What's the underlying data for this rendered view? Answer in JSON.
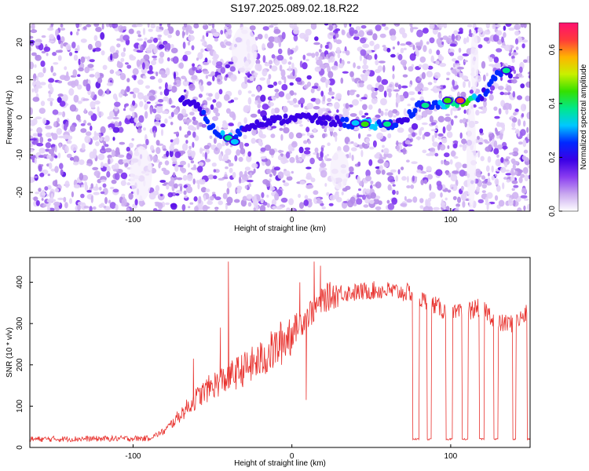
{
  "title": "S197.2025.089.02.18.R22",
  "chart_data": [
    {
      "type": "heatmap",
      "title": "S197.2025.089.02.18.R22",
      "xlabel": "Height of straight line (km)",
      "ylabel": "Frequency (Hz)",
      "xlim": [
        -165,
        150
      ],
      "ylim": [
        -25,
        25
      ],
      "xticks": [
        -100,
        0,
        100
      ],
      "yticks": [
        -20,
        -10,
        0,
        10,
        20
      ],
      "colorbar": {
        "label": "Normalized spectral amplitude",
        "range": [
          0,
          0.7
        ],
        "ticks": [
          0.0,
          0.2,
          0.4,
          0.6
        ],
        "colors": [
          "#ffffff",
          "#c9a8ef",
          "#8a3cf0",
          "#3a00e6",
          "#0028ff",
          "#00c8ff",
          "#00e88c",
          "#34e000",
          "#c8f000",
          "#ffb400",
          "#ff3a3a",
          "#ff1070"
        ]
      },
      "ridge": {
        "x": [
          -70,
          -60,
          -50,
          -40,
          -30,
          -20,
          -10,
          0,
          10,
          20,
          30,
          40,
          50,
          60,
          70,
          80,
          90,
          100,
          110,
          120,
          130,
          140
        ],
        "y": [
          5,
          3,
          -3,
          -6,
          -3,
          -1,
          -1,
          0,
          0,
          -1,
          -1,
          -2,
          -2,
          -2,
          -1,
          3,
          3,
          4,
          4,
          6,
          12,
          12
        ],
        "amplitude": [
          0.25,
          0.3,
          0.35,
          0.45,
          0.3,
          0.25,
          0.25,
          0.3,
          0.3,
          0.3,
          0.3,
          0.4,
          0.45,
          0.35,
          0.3,
          0.35,
          0.35,
          0.55,
          0.65,
          0.3,
          0.4,
          0.2
        ]
      },
      "hotspots": [
        {
          "x": -40,
          "y": -5.5,
          "amplitude": 0.4
        },
        {
          "x": -36,
          "y": -6.5,
          "amplitude": 0.3
        },
        {
          "x": 46,
          "y": -1.8,
          "amplitude": 0.45
        },
        {
          "x": 40,
          "y": -1.5,
          "amplitude": 0.3
        },
        {
          "x": 60,
          "y": -1.8,
          "amplitude": 0.35
        },
        {
          "x": 98,
          "y": 4.5,
          "amplitude": 0.45
        },
        {
          "x": 106,
          "y": 4.5,
          "amplitude": 0.65
        },
        {
          "x": 84,
          "y": 3.2,
          "amplitude": 0.35
        },
        {
          "x": 135,
          "y": 12.5,
          "amplitude": 0.4
        }
      ]
    },
    {
      "type": "line",
      "xlabel": "Height of straight line (km)",
      "ylabel": "SNR (10 * v/v)",
      "xlim": [
        -165,
        150
      ],
      "ylim": [
        0,
        460
      ],
      "xticks": [
        -100,
        0,
        100
      ],
      "yticks": [
        0,
        100,
        200,
        300,
        400
      ],
      "color": "#e8322e",
      "envelope": {
        "x": [
          -165,
          -90,
          -80,
          -70,
          -60,
          -50,
          -40,
          -30,
          -20,
          -10,
          0,
          10,
          20,
          30,
          40,
          50,
          60,
          70,
          75,
          80,
          90,
          100,
          110,
          120,
          130,
          140,
          150
        ],
        "y": [
          20,
          22,
          40,
          80,
          120,
          150,
          170,
          190,
          210,
          240,
          280,
          320,
          360,
          375,
          375,
          380,
          380,
          375,
          375,
          360,
          345,
          320,
          330,
          340,
          300,
          300,
          330
        ]
      },
      "spikes": [
        {
          "x": -40,
          "y": 450
        },
        {
          "x": -45,
          "y": 290
        },
        {
          "x": -62,
          "y": 215
        },
        {
          "x": 5,
          "y": 400
        },
        {
          "x": 14,
          "y": 450
        },
        {
          "x": 18,
          "y": 440
        },
        {
          "x": 9,
          "y": 115
        }
      ],
      "dropouts": [
        {
          "x_start": 76,
          "x_end": 80,
          "y": 20
        },
        {
          "x_start": 85,
          "x_end": 88,
          "y": 20
        },
        {
          "x_start": 97,
          "x_end": 101,
          "y": 20
        },
        {
          "x_start": 107,
          "x_end": 111,
          "y": 20
        },
        {
          "x_start": 118,
          "x_end": 121,
          "y": 20
        },
        {
          "x_start": 127,
          "x_end": 130,
          "y": 20
        },
        {
          "x_start": 139,
          "x_end": 141,
          "y": 20
        },
        {
          "x_start": 148,
          "x_end": 150,
          "y": 20
        }
      ]
    }
  ]
}
